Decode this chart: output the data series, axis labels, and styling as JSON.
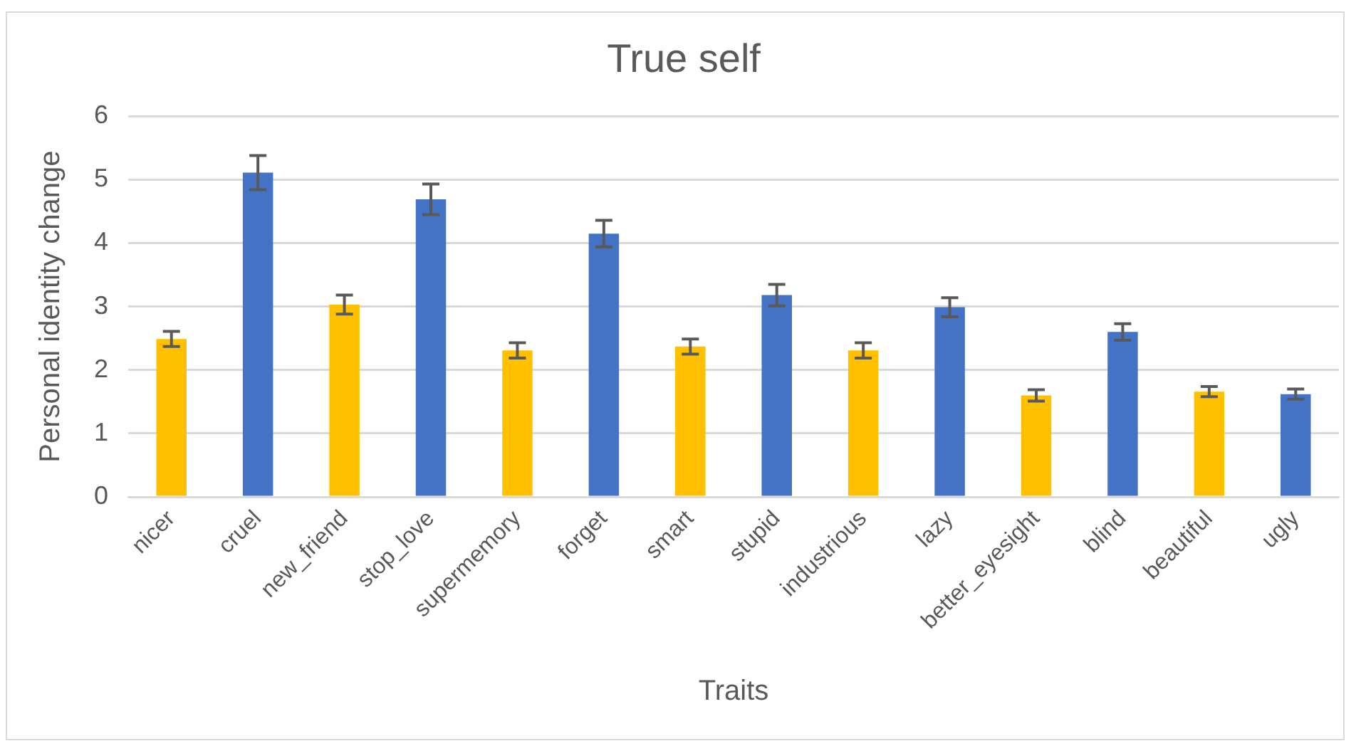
{
  "chart_data": {
    "type": "bar",
    "title": "True self",
    "xlabel": "Traits",
    "ylabel": "Personal identity change",
    "categories": [
      "nicer",
      "cruel",
      "new_friend",
      "stop_love",
      "supermemory",
      "forget",
      "smart",
      "stupid",
      "industrious",
      "lazy",
      "better_eyesight",
      "blind",
      "beautiful",
      "ugly"
    ],
    "values": [
      2.49,
      5.11,
      3.03,
      4.69,
      2.31,
      4.15,
      2.37,
      3.18,
      2.31,
      2.99,
      1.6,
      2.6,
      1.66,
      1.62
    ],
    "errors": [
      0.12,
      0.27,
      0.15,
      0.24,
      0.12,
      0.21,
      0.12,
      0.17,
      0.12,
      0.15,
      0.09,
      0.13,
      0.08,
      0.08
    ],
    "colors": [
      "#ffc000",
      "#4472c4",
      "#ffc000",
      "#4472c4",
      "#ffc000",
      "#4472c4",
      "#ffc000",
      "#4472c4",
      "#ffc000",
      "#4472c4",
      "#ffc000",
      "#4472c4",
      "#ffc000",
      "#4472c4"
    ],
    "ylim": [
      0,
      6
    ],
    "yticks": [
      0,
      1,
      2,
      3,
      4,
      5,
      6
    ],
    "grid": "y",
    "legend": false
  }
}
